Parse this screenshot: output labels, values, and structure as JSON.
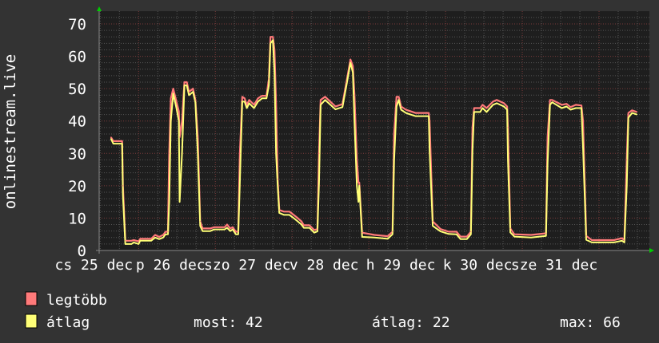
{
  "chart_data": {
    "type": "line",
    "ylabel": "onlinestream.live",
    "ylim": [
      0,
      70
    ],
    "yticks": [
      "0",
      "10",
      "20",
      "30",
      "40",
      "50",
      "60",
      "70"
    ],
    "xlim": [
      "12-25 11:40",
      "01-01 15:45"
    ],
    "xtick_labels": [
      "cs 25 dec",
      "p 26 dec",
      "szo 27 dec",
      "v 28 dec",
      "h 29 dec",
      "k 30 dec",
      "sze 31 dec"
    ],
    "grid": true,
    "colors": {
      "background": "#333333",
      "plot": "#1e1e1e",
      "grid_minor": "#555555",
      "grid_major": "#7a3b3b",
      "axis_arrow": "#00cc00"
    },
    "series": [
      {
        "name": "legtöbb",
        "color": "#ff7a7a"
      },
      {
        "name": "átlag",
        "color": "#ffff77"
      }
    ],
    "points_columns": [
      "time",
      "átlag",
      "legtöbb"
    ],
    "points": [
      [
        "12-25 15:20",
        34.5,
        35
      ],
      [
        "12-25 16:05",
        33,
        33.8
      ],
      [
        "12-25 17:35",
        33,
        33.8
      ],
      [
        "12-25 18:50",
        33,
        33.8
      ],
      [
        "12-25 19:05",
        17,
        20
      ],
      [
        "12-25 19:50",
        2,
        3
      ],
      [
        "12-25 21:45",
        2,
        3
      ],
      [
        "12-25 22:30",
        2.5,
        3.2
      ],
      [
        "12-26 00:00",
        2,
        2.8
      ],
      [
        "12-26 00:30",
        3,
        3.6
      ],
      [
        "12-26 03:55",
        3,
        3.6
      ],
      [
        "12-26 05:10",
        4,
        4.8
      ],
      [
        "12-26 06:25",
        3.5,
        4.2
      ],
      [
        "12-26 07:40",
        4,
        4.8
      ],
      [
        "12-26 08:25",
        5,
        5.8
      ],
      [
        "12-26 09:10",
        5,
        5.8
      ],
      [
        "12-26 09:35",
        15,
        30
      ],
      [
        "12-26 10:05",
        40,
        47
      ],
      [
        "12-26 10:50",
        48.5,
        50
      ],
      [
        "12-26 11:50",
        44,
        46
      ],
      [
        "12-26 12:35",
        40,
        43
      ],
      [
        "12-26 12:50",
        15,
        35
      ],
      [
        "12-26 13:35",
        30,
        40
      ],
      [
        "12-26 14:20",
        51,
        52
      ],
      [
        "12-26 15:05",
        51,
        52
      ],
      [
        "12-26 15:45",
        48,
        49
      ],
      [
        "12-26 17:00",
        49,
        50
      ],
      [
        "12-26 17:45",
        45.8,
        46.5
      ],
      [
        "12-26 18:30",
        30,
        35
      ],
      [
        "12-26 19:15",
        7.6,
        9
      ],
      [
        "12-26 20:00",
        6,
        6.8
      ],
      [
        "12-26 22:25",
        6,
        6.8
      ],
      [
        "12-26 23:40",
        6.5,
        7.2
      ],
      [
        "12-27 02:55",
        6.5,
        7.2
      ],
      [
        "12-27 03:40",
        7,
        8
      ],
      [
        "12-27 04:40",
        6,
        6.8
      ],
      [
        "12-27 05:25",
        6.5,
        7.2
      ],
      [
        "12-27 06:25",
        5,
        5.8
      ],
      [
        "12-27 07:10",
        5,
        5.8
      ],
      [
        "12-27 07:40",
        21,
        30
      ],
      [
        "12-27 08:25",
        46,
        47.5
      ],
      [
        "12-27 09:10",
        46,
        47
      ],
      [
        "12-27 09:50",
        44,
        45
      ],
      [
        "12-27 10:35",
        45.5,
        46.5
      ],
      [
        "12-27 12:05",
        44,
        45
      ],
      [
        "12-27 13:20",
        46,
        47
      ],
      [
        "12-27 14:35",
        47,
        47.8
      ],
      [
        "12-27 16:00",
        47,
        47.8
      ],
      [
        "12-27 16:45",
        51,
        53
      ],
      [
        "12-27 17:15",
        64,
        66
      ],
      [
        "12-27 18:00",
        65,
        66
      ],
      [
        "12-27 18:30",
        55,
        62
      ],
      [
        "12-27 19:00",
        30,
        45
      ],
      [
        "12-27 19:30",
        20,
        22
      ],
      [
        "12-27 20:00",
        11.6,
        12.5
      ],
      [
        "12-27 21:30",
        11,
        12
      ],
      [
        "12-27 23:10",
        11,
        12
      ],
      [
        "12-28 00:30",
        10,
        11
      ],
      [
        "12-28 01:45",
        9,
        10
      ],
      [
        "12-28 02:55",
        8,
        9
      ],
      [
        "12-28 03:40",
        7,
        7.8
      ],
      [
        "12-28 05:25",
        7,
        7.8
      ],
      [
        "12-28 06:55",
        5.5,
        6.3
      ],
      [
        "12-28 07:55",
        5.9,
        6.6
      ],
      [
        "12-28 08:25",
        21,
        30
      ],
      [
        "12-28 08:55",
        45,
        46.5
      ],
      [
        "12-28 10:20",
        46.5,
        47.5
      ],
      [
        "12-28 13:35",
        43.6,
        44.5
      ],
      [
        "12-28 15:45",
        44.3,
        45.2
      ],
      [
        "12-28 17:00",
        51,
        52
      ],
      [
        "12-28 18:15",
        58,
        59
      ],
      [
        "12-28 19:00",
        55,
        57
      ],
      [
        "12-28 19:30",
        40,
        48
      ],
      [
        "12-28 20:15",
        20,
        28
      ],
      [
        "12-28 20:45",
        15,
        21
      ],
      [
        "12-28 21:00",
        20,
        21
      ],
      [
        "12-28 21:55",
        4.2,
        5.5
      ],
      [
        "12-29 01:45",
        4,
        4.8
      ],
      [
        "12-29 05:55",
        3.6,
        4.4
      ],
      [
        "12-29 07:25",
        5,
        5.8
      ],
      [
        "12-29 07:55",
        28,
        36
      ],
      [
        "12-29 08:40",
        44.5,
        47.5
      ],
      [
        "12-29 09:20",
        46.5,
        47.5
      ],
      [
        "12-29 10:05",
        43.5,
        44.5
      ],
      [
        "12-29 11:35",
        42.5,
        43.5
      ],
      [
        "12-29 14:35",
        41.5,
        42.5
      ],
      [
        "12-29 18:45",
        41.5,
        42.5
      ],
      [
        "12-29 19:00",
        31,
        40
      ],
      [
        "12-29 20:00",
        7.6,
        9
      ],
      [
        "12-29 22:25",
        5.9,
        6.6
      ],
      [
        "12-30 01:00",
        5.1,
        5.8
      ],
      [
        "12-30 03:25",
        5,
        5.8
      ],
      [
        "12-30 04:40",
        3.5,
        4.3
      ],
      [
        "12-30 06:40",
        3.5,
        4.3
      ],
      [
        "12-30 07:55",
        5,
        5.8
      ],
      [
        "12-30 08:25",
        31,
        38
      ],
      [
        "12-30 08:55",
        42.8,
        44
      ],
      [
        "12-30 10:50",
        42.8,
        44
      ],
      [
        "12-30 11:35",
        44,
        45
      ],
      [
        "12-30 12:50",
        42.8,
        44
      ],
      [
        "12-30 14:50",
        45,
        46
      ],
      [
        "12-30 16:00",
        45.5,
        46.5
      ],
      [
        "12-30 18:15",
        44.5,
        45.5
      ],
      [
        "12-30 19:15",
        43.5,
        44.5
      ],
      [
        "12-30 19:30",
        28,
        38
      ],
      [
        "12-30 20:15",
        5.6,
        6.8
      ],
      [
        "12-30 21:30",
        4.3,
        5
      ],
      [
        "12-31 02:45",
        4,
        4.8
      ],
      [
        "12-31 07:25",
        4.5,
        5.3
      ],
      [
        "12-31 07:55",
        27,
        35
      ],
      [
        "12-31 08:40",
        45,
        46.5
      ],
      [
        "12-31 09:20",
        45.8,
        46.5
      ],
      [
        "12-31 12:20",
        44,
        45
      ],
      [
        "12-31 13:50",
        44.5,
        45.3
      ],
      [
        "12-31 15:05",
        43.5,
        44.3
      ],
      [
        "12-31 16:45",
        44,
        45
      ],
      [
        "12-31 18:30",
        44,
        44.8
      ],
      [
        "12-31 19:00",
        32,
        40
      ],
      [
        "12-31 20:00",
        3.3,
        4.5
      ],
      [
        "12-31 21:45",
        2.5,
        3.2
      ],
      [
        "01-01 04:40",
        2.5,
        3.2
      ],
      [
        "01-01 07:10",
        3,
        3.8
      ],
      [
        "01-01 07:55",
        2.5,
        3.2
      ],
      [
        "01-01 08:40",
        20,
        28
      ],
      [
        "01-01 09:10",
        41,
        42.5
      ],
      [
        "01-01 10:20",
        42.5,
        43.3
      ],
      [
        "01-01 11:50",
        42,
        42.8
      ]
    ]
  },
  "legend": {
    "items": [
      {
        "label": "legtöbb",
        "color": "#ff7a7a"
      },
      {
        "label": "átlag",
        "color": "#ffff77"
      }
    ],
    "stats": {
      "current": "most: 42",
      "average": "átlag: 22",
      "max": "max: 66"
    }
  }
}
